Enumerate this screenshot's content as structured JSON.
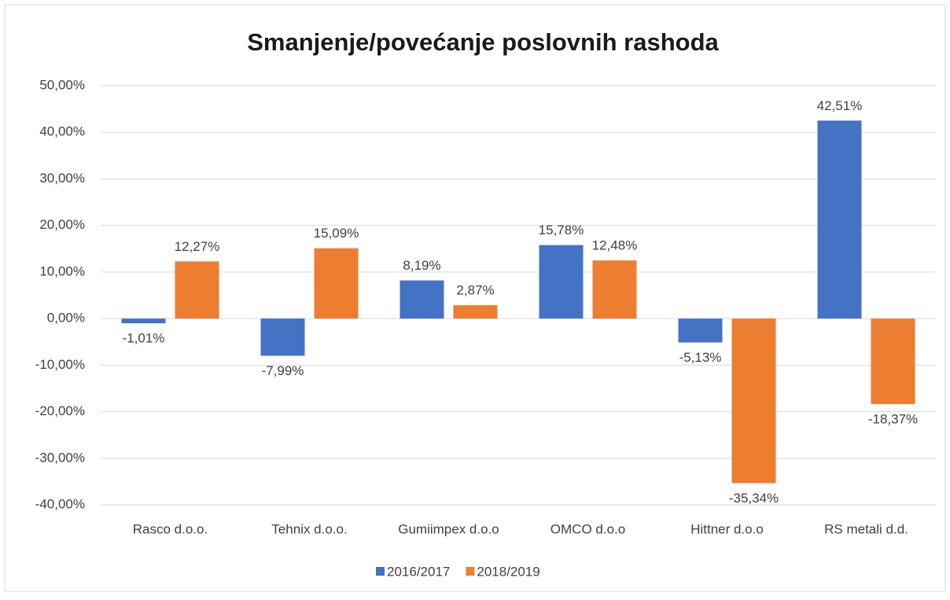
{
  "chart_data": {
    "type": "bar",
    "title": "Smanjenje/povećanje poslovnih rashoda",
    "categories": [
      "Rasco d.o.o.",
      "Tehnix d.o.o.",
      "Gumiimpex d.o.o",
      "OMCO d.o.o",
      "Hittner d.o.o",
      "RS metali d.d."
    ],
    "series": [
      {
        "name": "2016/2017",
        "color": "#4472c4",
        "values": [
          -1.01,
          -7.99,
          8.19,
          15.78,
          -5.13,
          42.51
        ],
        "value_labels": [
          "-1,01%",
          "-7,99%",
          "8,19%",
          "15,78%",
          "-5,13%",
          "42,51%"
        ]
      },
      {
        "name": "2018/2019",
        "color": "#ed7d31",
        "values": [
          12.27,
          15.09,
          2.87,
          12.48,
          -35.34,
          -18.37
        ],
        "value_labels": [
          "12,27%",
          "15,09%",
          "2,87%",
          "12,48%",
          "-35,34%",
          "-18,37%"
        ]
      }
    ],
    "ylim": [
      -40,
      50
    ],
    "yticks": [
      {
        "value": -40,
        "label": "-40,00%"
      },
      {
        "value": -30,
        "label": "-30,00%"
      },
      {
        "value": -20,
        "label": "-20,00%"
      },
      {
        "value": -10,
        "label": "-10,00%"
      },
      {
        "value": 0,
        "label": "0,00%"
      },
      {
        "value": 10,
        "label": "10,00%"
      },
      {
        "value": 20,
        "label": "20,00%"
      },
      {
        "value": 30,
        "label": "30,00%"
      },
      {
        "value": 40,
        "label": "40,00%"
      },
      {
        "value": 50,
        "label": "50,00%"
      }
    ],
    "grid": true,
    "legend": "bottom"
  }
}
